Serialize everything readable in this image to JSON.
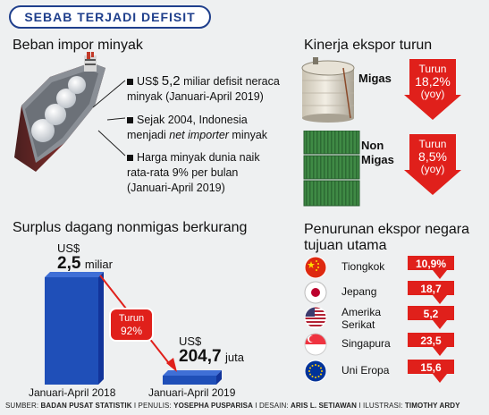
{
  "title": "SEBAB TERJADI DEFISIT",
  "minyak": {
    "header": "Beban impor minyak",
    "bullets": [
      {
        "prefix": "US$ ",
        "big": "5,2",
        "rest": " miliar defisit neraca",
        "line2": "minyak (Januari-April 2019)"
      },
      {
        "line1": "Sejak 2004, Indonesia",
        "line2_pre": "menjadi ",
        "line2_em": "net importer",
        "line2_post": " minyak"
      },
      {
        "line1": "Harga minyak dunia naik",
        "line2": "rata-rata 9% per bulan",
        "line3": "(Januari-April 2019)"
      }
    ]
  },
  "ekspor": {
    "header": "Kinerja ekspor turun",
    "migas": {
      "label": "Migas",
      "turun": "Turun",
      "pct": "18,2%",
      "yoy": "(yoy)"
    },
    "nonmigas": {
      "label1": "Non",
      "label2": "Migas",
      "turun": "Turun",
      "pct": "8,5%",
      "yoy": "(yoy)"
    }
  },
  "surplus": {
    "header": "Surplus dagang nonmigas berkurang",
    "bar1": {
      "currency": "US$",
      "value": "2,5",
      "unit": "miliar",
      "label": "Januari-April 2018"
    },
    "bar2": {
      "currency": "US$",
      "value": "204,7",
      "unit": "juta",
      "label": "Januari-April 2019"
    },
    "turun": {
      "label": "Turun",
      "pct": "92%"
    }
  },
  "tujuan": {
    "header1": "Penurunan ekspor negara",
    "header2": "tujuan utama",
    "countries": [
      {
        "name": "Tiongkok",
        "value": "10,9%",
        "flag": "china-flag"
      },
      {
        "name": "Jepang",
        "value": "18,7",
        "flag": "japan-flag"
      },
      {
        "name": "Amerika",
        "name2": "Serikat",
        "value": "5,2",
        "flag": "usa-flag"
      },
      {
        "name": "Singapura",
        "value": "23,5",
        "flag": "singapore-flag"
      },
      {
        "name": "Uni Eropa",
        "value": "15,6",
        "flag": "eu-flag"
      }
    ]
  },
  "footer": {
    "sumber_label": "SUMBER: ",
    "sumber": "BADAN PUSAT STATISTIK",
    "penulis_label": " I PENULIS: ",
    "penulis": "YOSEPHA PUSPARISA",
    "desain_label": " I DESAIN: ",
    "desain": "ARIS L. SETIAWAN",
    "ilustrasi_label": " I ILUSTRASI: ",
    "ilustrasi": "TIMOTHY ARDY"
  },
  "colors": {
    "red": "#e0201b",
    "blue": "#1f4fb8",
    "title": "#1f3f8c"
  }
}
